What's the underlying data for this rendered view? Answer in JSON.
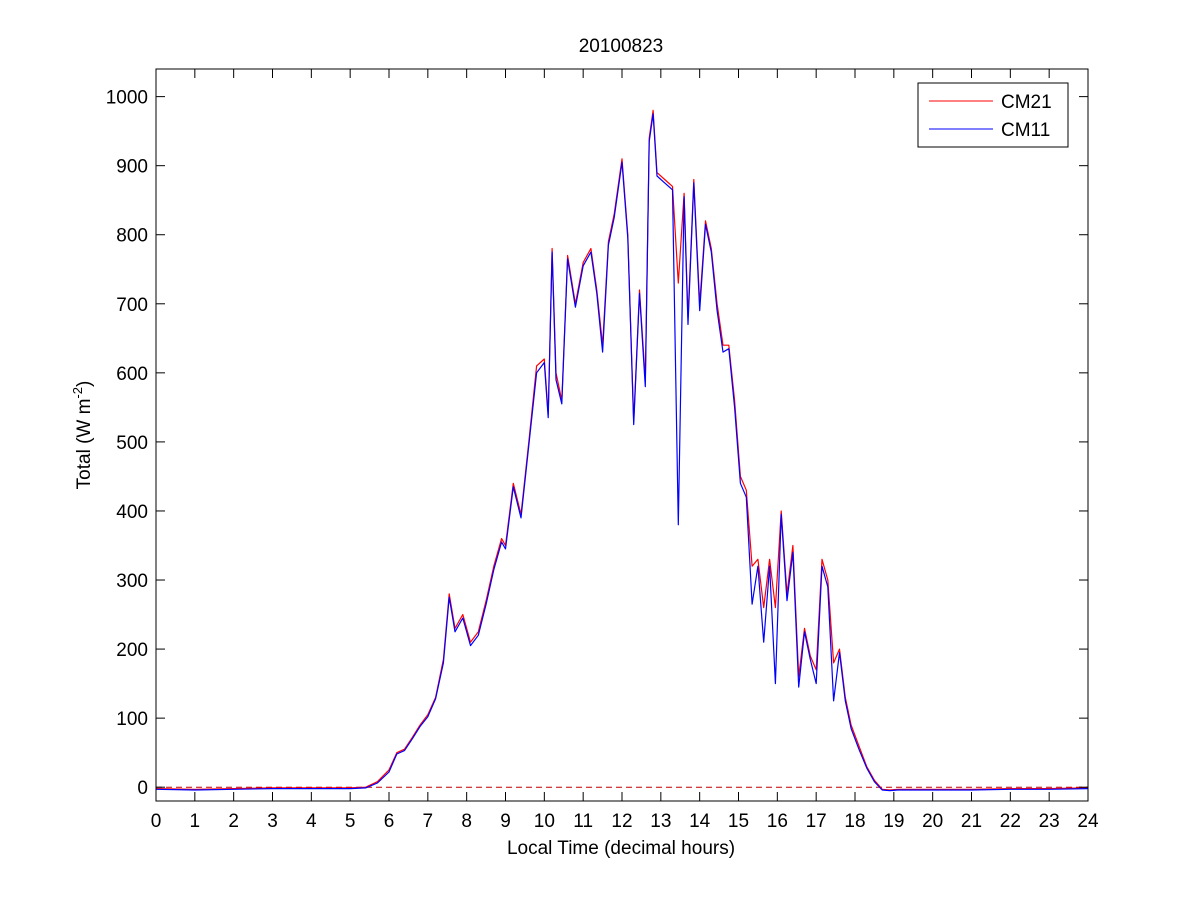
{
  "chart_data": {
    "type": "line",
    "title": "20100823",
    "xlabel": "Local Time (decimal hours)",
    "ylabel_main": "Total (W m",
    "ylabel_sup": "-2",
    "ylabel_close": ")",
    "xlim": [
      0,
      24
    ],
    "ylim": [
      -20,
      1040
    ],
    "xticks": [
      "0",
      "1",
      "2",
      "3",
      "4",
      "5",
      "6",
      "7",
      "8",
      "9",
      "10",
      "11",
      "12",
      "13",
      "14",
      "15",
      "16",
      "17",
      "18",
      "19",
      "20",
      "21",
      "22",
      "23",
      "24"
    ],
    "yticks": [
      "0",
      "100",
      "200",
      "300",
      "400",
      "500",
      "600",
      "700",
      "800",
      "900",
      "1000"
    ],
    "ytick_values": [
      0,
      100,
      200,
      300,
      400,
      500,
      600,
      700,
      800,
      900,
      1000
    ],
    "grid": false,
    "legend_position": "top-right",
    "zero_line": {
      "value": 0,
      "color": "#c00000",
      "style": "dashed"
    },
    "series": [
      {
        "name": "CM21",
        "color": "#ff0000",
        "x": [
          0,
          1,
          2,
          3,
          4,
          5,
          5.4,
          5.7,
          6,
          6.2,
          6.4,
          6.6,
          6.8,
          7,
          7.2,
          7.4,
          7.55,
          7.7,
          7.9,
          8.1,
          8.3,
          8.5,
          8.7,
          8.9,
          9.0,
          9.2,
          9.4,
          9.6,
          9.8,
          10.0,
          10.1,
          10.2,
          10.3,
          10.45,
          10.6,
          10.8,
          11.0,
          11.2,
          11.35,
          11.5,
          11.65,
          11.8,
          12.0,
          12.15,
          12.3,
          12.45,
          12.6,
          12.7,
          12.8,
          12.9,
          13.1,
          13.3,
          13.45,
          13.6,
          13.7,
          13.85,
          14.0,
          14.15,
          14.3,
          14.45,
          14.6,
          14.75,
          14.9,
          15.05,
          15.2,
          15.35,
          15.5,
          15.65,
          15.8,
          15.95,
          16.1,
          16.25,
          16.4,
          16.55,
          16.7,
          16.85,
          17.0,
          17.15,
          17.3,
          17.45,
          17.6,
          17.75,
          17.9,
          18.1,
          18.3,
          18.5,
          18.7,
          18.9,
          19.1,
          19.5,
          20,
          21,
          22,
          23,
          24
        ],
        "y": [
          -2,
          -3,
          -2,
          -1,
          -1,
          -1,
          0,
          8,
          25,
          50,
          55,
          72,
          90,
          105,
          130,
          185,
          280,
          230,
          250,
          210,
          225,
          270,
          320,
          360,
          350,
          440,
          395,
          500,
          610,
          620,
          540,
          780,
          600,
          560,
          770,
          700,
          760,
          780,
          720,
          640,
          790,
          830,
          910,
          800,
          530,
          720,
          590,
          940,
          980,
          890,
          880,
          870,
          730,
          860,
          680,
          880,
          700,
          820,
          780,
          700,
          640,
          640,
          560,
          450,
          430,
          320,
          330,
          260,
          330,
          260,
          400,
          280,
          350,
          160,
          230,
          190,
          170,
          330,
          300,
          180,
          200,
          130,
          90,
          60,
          30,
          10,
          -3,
          -4,
          -3,
          -3,
          -3,
          -3,
          -2,
          -2,
          -1
        ]
      },
      {
        "name": "CM11",
        "color": "#0000ff",
        "x": [
          0,
          1,
          2,
          3,
          4,
          5,
          5.4,
          5.7,
          6,
          6.2,
          6.4,
          6.6,
          6.8,
          7,
          7.2,
          7.4,
          7.55,
          7.7,
          7.9,
          8.1,
          8.3,
          8.5,
          8.7,
          8.9,
          9.0,
          9.2,
          9.4,
          9.6,
          9.8,
          10.0,
          10.1,
          10.2,
          10.3,
          10.45,
          10.6,
          10.8,
          11.0,
          11.2,
          11.35,
          11.5,
          11.65,
          11.8,
          12.0,
          12.15,
          12.3,
          12.45,
          12.6,
          12.7,
          12.8,
          12.9,
          13.1,
          13.3,
          13.45,
          13.6,
          13.7,
          13.85,
          14.0,
          14.15,
          14.3,
          14.45,
          14.6,
          14.75,
          14.9,
          15.05,
          15.2,
          15.35,
          15.5,
          15.65,
          15.8,
          15.95,
          16.1,
          16.25,
          16.4,
          16.55,
          16.7,
          16.85,
          17.0,
          17.15,
          17.3,
          17.45,
          17.6,
          17.75,
          17.9,
          18.1,
          18.3,
          18.5,
          18.7,
          18.9,
          19.1,
          19.5,
          20,
          21,
          22,
          23,
          24
        ],
        "y": [
          -3,
          -4,
          -3,
          -2,
          -2,
          -2,
          -1,
          6,
          22,
          48,
          53,
          70,
          88,
          102,
          128,
          180,
          275,
          225,
          245,
          205,
          220,
          265,
          315,
          355,
          345,
          435,
          390,
          495,
          600,
          615,
          535,
          775,
          590,
          555,
          765,
          695,
          755,
          775,
          715,
          630,
          785,
          825,
          905,
          795,
          525,
          715,
          580,
          935,
          975,
          885,
          875,
          865,
          380,
          855,
          670,
          875,
          690,
          815,
          775,
          690,
          630,
          635,
          550,
          440,
          420,
          265,
          320,
          210,
          320,
          150,
          395,
          270,
          340,
          145,
          225,
          185,
          150,
          320,
          290,
          125,
          195,
          125,
          85,
          55,
          28,
          8,
          -4,
          -5,
          -4,
          -4,
          -4,
          -4,
          -3,
          -3,
          -2
        ]
      }
    ]
  }
}
